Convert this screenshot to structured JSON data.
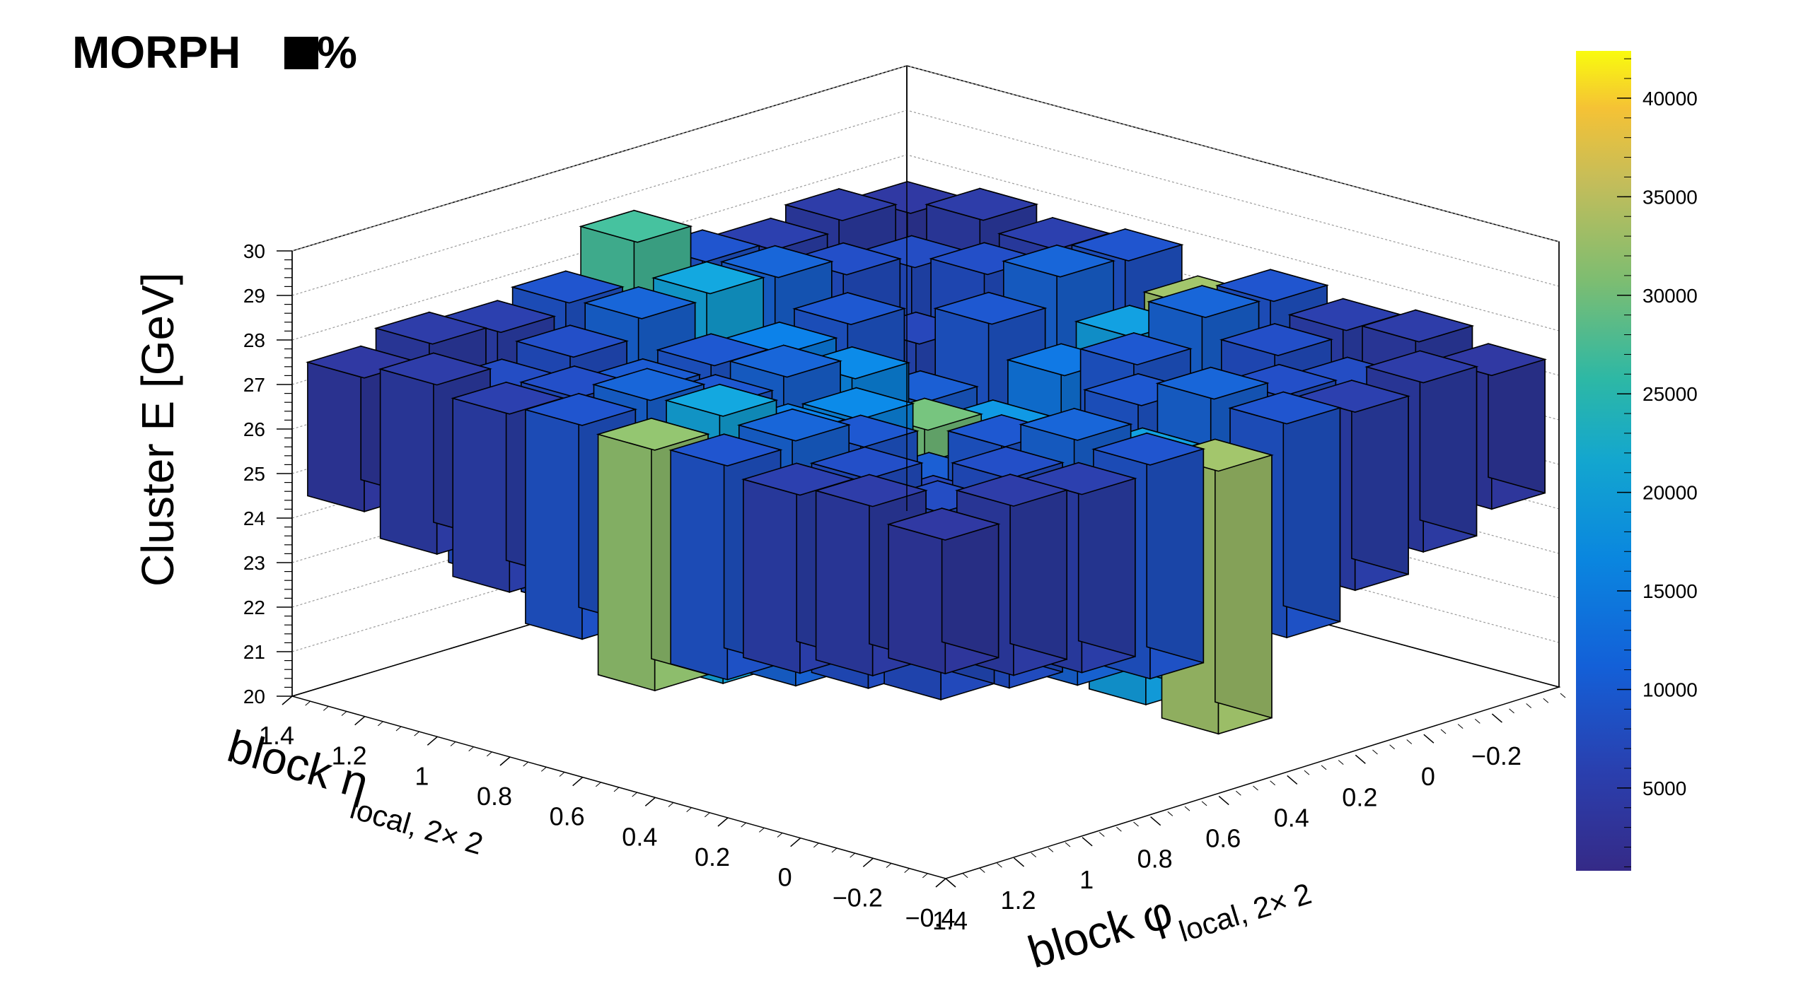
{
  "header": {
    "label": "MORPH",
    "percent_text": "%"
  },
  "colors": {
    "palette": [
      "#352a87",
      "#1f4fc4",
      "#0a7ee0",
      "#13a3d4",
      "#2db8a5",
      "#7dbd71",
      "#c4bd5a",
      "#f7c93a",
      "#f9fb0e"
    ],
    "bar_outline": "#000000",
    "grid": "#9a9a9a",
    "frame": "#000000"
  },
  "chart_data": {
    "type": "lego3d",
    "title": "",
    "xlabel": "block φ",
    "xlabel_sub": "local, 2× 2",
    "ylabel": "block η",
    "ylabel_sub": "local, 2× 2",
    "zlabel": "Cluster E  [GeV]",
    "x_ticks": [
      "−0.2",
      "0",
      "0.2",
      "0.4",
      "0.6",
      "0.8",
      "1",
      "1.2",
      "1.4"
    ],
    "y_ticks": [
      "1.4",
      "1.2",
      "1",
      "0.8",
      "0.6",
      "0.4",
      "0.2",
      "0",
      "−0.2",
      "−0.4"
    ],
    "z_ticks": [
      "20",
      "21",
      "22",
      "23",
      "24",
      "25",
      "26",
      "27",
      "28",
      "29",
      "30"
    ],
    "zlim": [
      20,
      30
    ],
    "color_scale": {
      "ticks": [
        "5000",
        "10000",
        "15000",
        "20000",
        "25000",
        "30000",
        "35000",
        "40000"
      ],
      "range": [
        800,
        42400
      ]
    },
    "phi_bins": [
      -0.3,
      -0.1,
      0.1,
      0.3,
      0.5,
      0.7,
      0.9,
      1.1,
      1.3
    ],
    "eta_bins": [
      1.3,
      1.1,
      0.9,
      0.7,
      0.5,
      0.3,
      0.1,
      -0.1,
      -0.3
    ],
    "bars": [
      {
        "phi": 0.5,
        "eta": 0.5,
        "zlo": 21.7,
        "zhi": 26.3,
        "count": 26000
      },
      {
        "phi": 0.5,
        "eta": 0.3,
        "zlo": 22.1,
        "zhi": 25.8,
        "count": 14000
      },
      {
        "phi": 0.3,
        "eta": 0.5,
        "zlo": 22.1,
        "zhi": 25.8,
        "count": 14000
      },
      {
        "phi": 0.5,
        "eta": 0.7,
        "zlo": 22.0,
        "zhi": 27.0,
        "count": 12000
      },
      {
        "phi": 0.7,
        "eta": 0.5,
        "zlo": 22.0,
        "zhi": 27.0,
        "count": 12000
      },
      {
        "phi": 0.1,
        "eta": 0.1,
        "zlo": 21.6,
        "zhi": 25.3,
        "count": 8500
      },
      {
        "phi": 0.3,
        "eta": 0.3,
        "zlo": 21.8,
        "zhi": 25.9,
        "count": 9000
      },
      {
        "phi": 0.7,
        "eta": 0.7,
        "zlo": 21.9,
        "zhi": 27.5,
        "count": 8000
      },
      {
        "phi": 0.9,
        "eta": 0.9,
        "zlo": 22.2,
        "zhi": 27.2,
        "count": 7000
      },
      {
        "phi": 1.3,
        "eta": 0.5,
        "zlo": 22.3,
        "zhi": 27.7,
        "count": 28000
      },
      {
        "phi": 0.5,
        "eta": 1.3,
        "zlo": 22.3,
        "zhi": 28.7,
        "count": 23000
      },
      {
        "phi": 0.5,
        "eta": -0.3,
        "zlo": 21.3,
        "zhi": 27.2,
        "count": 29000
      },
      {
        "phi": -0.3,
        "eta": 0.5,
        "zlo": 21.3,
        "zhi": 27.2,
        "count": 29000
      },
      {
        "phi": 1.1,
        "eta": 0.5,
        "zlo": 22.0,
        "zhi": 28.0,
        "count": 16000
      },
      {
        "phi": 0.5,
        "eta": 1.1,
        "zlo": 22.0,
        "zhi": 28.0,
        "count": 16000
      },
      {
        "phi": -0.1,
        "eta": 0.5,
        "zlo": 21.5,
        "zhi": 27.0,
        "count": 15000
      },
      {
        "phi": 0.5,
        "eta": -0.1,
        "zlo": 21.5,
        "zhi": 27.0,
        "count": 15000
      },
      {
        "phi": 0.9,
        "eta": 0.5,
        "zlo": 21.8,
        "zhi": 27.1,
        "count": 11000
      },
      {
        "phi": 0.5,
        "eta": 0.9,
        "zlo": 21.8,
        "zhi": 27.1,
        "count": 11000
      },
      {
        "phi": 0.1,
        "eta": 0.5,
        "zlo": 21.6,
        "zhi": 26.6,
        "count": 10000
      },
      {
        "phi": 0.5,
        "eta": 0.1,
        "zlo": 21.6,
        "zhi": 26.6,
        "count": 10000
      },
      {
        "phi": 1.3,
        "eta": 1.3,
        "zlo": 24.5,
        "zhi": 27.5,
        "count": 2500
      },
      {
        "phi": 1.3,
        "eta": -0.3,
        "zlo": 24.5,
        "zhi": 27.5,
        "count": 2500
      },
      {
        "phi": -0.3,
        "eta": 1.3,
        "zlo": 24.5,
        "zhi": 27.5,
        "count": 2500
      },
      {
        "phi": -0.3,
        "eta": -0.3,
        "zlo": 24.5,
        "zhi": 27.5,
        "count": 2500
      },
      {
        "phi": 1.1,
        "eta": 1.1,
        "zlo": 23.0,
        "zhi": 27.2,
        "count": 5200
      },
      {
        "phi": 1.1,
        "eta": -0.1,
        "zlo": 23.0,
        "zhi": 27.2,
        "count": 5200
      },
      {
        "phi": -0.1,
        "eta": 1.1,
        "zlo": 23.0,
        "zhi": 27.2,
        "count": 5200
      },
      {
        "phi": -0.1,
        "eta": -0.1,
        "zlo": 23.0,
        "zhi": 27.2,
        "count": 5200
      },
      {
        "phi": 1.3,
        "eta": 0.9,
        "zlo": 23.6,
        "zhi": 27.6,
        "count": 3500
      },
      {
        "phi": 1.3,
        "eta": 0.1,
        "zlo": 23.6,
        "zhi": 27.6,
        "count": 3500
      },
      {
        "phi": -0.3,
        "eta": 0.9,
        "zlo": 23.6,
        "zhi": 27.6,
        "count": 3500
      },
      {
        "phi": -0.3,
        "eta": 0.1,
        "zlo": 23.6,
        "zhi": 27.6,
        "count": 3500
      },
      {
        "phi": 0.9,
        "eta": 1.3,
        "zlo": 23.6,
        "zhi": 27.6,
        "count": 3500
      },
      {
        "phi": 0.1,
        "eta": 1.3,
        "zlo": 23.6,
        "zhi": 27.6,
        "count": 3500
      },
      {
        "phi": 0.9,
        "eta": -0.3,
        "zlo": 23.6,
        "zhi": 27.6,
        "count": 3500
      },
      {
        "phi": 0.1,
        "eta": -0.3,
        "zlo": 23.6,
        "zhi": 27.6,
        "count": 3500
      },
      {
        "phi": 1.3,
        "eta": 0.7,
        "zlo": 23.0,
        "zhi": 27.8,
        "count": 6200
      },
      {
        "phi": 1.3,
        "eta": 0.3,
        "zlo": 23.0,
        "zhi": 27.8,
        "count": 6200
      },
      {
        "phi": -0.3,
        "eta": 0.7,
        "zlo": 23.0,
        "zhi": 27.8,
        "count": 6200
      },
      {
        "phi": -0.3,
        "eta": 0.3,
        "zlo": 23.0,
        "zhi": 27.8,
        "count": 6200
      },
      {
        "phi": 0.7,
        "eta": 1.3,
        "zlo": 23.0,
        "zhi": 27.8,
        "count": 6200
      },
      {
        "phi": 0.3,
        "eta": 1.3,
        "zlo": 23.0,
        "zhi": 27.8,
        "count": 6200
      },
      {
        "phi": 0.7,
        "eta": -0.3,
        "zlo": 23.0,
        "zhi": 27.8,
        "count": 6200
      },
      {
        "phi": 0.3,
        "eta": -0.3,
        "zlo": 23.0,
        "zhi": 27.8,
        "count": 6200
      },
      {
        "phi": 1.3,
        "eta": 1.1,
        "zlo": 24.0,
        "zhi": 27.8,
        "count": 3000
      },
      {
        "phi": 1.3,
        "eta": -0.1,
        "zlo": 24.0,
        "zhi": 27.8,
        "count": 3000
      },
      {
        "phi": -0.3,
        "eta": 1.1,
        "zlo": 24.0,
        "zhi": 27.8,
        "count": 3000
      },
      {
        "phi": -0.3,
        "eta": -0.1,
        "zlo": 24.0,
        "zhi": 27.8,
        "count": 3000
      },
      {
        "phi": 1.1,
        "eta": 1.3,
        "zlo": 24.0,
        "zhi": 27.8,
        "count": 3000
      },
      {
        "phi": -0.1,
        "eta": 1.3,
        "zlo": 24.0,
        "zhi": 27.8,
        "count": 3000
      },
      {
        "phi": 1.1,
        "eta": -0.3,
        "zlo": 24.0,
        "zhi": 27.8,
        "count": 3000
      },
      {
        "phi": -0.1,
        "eta": -0.3,
        "zlo": 24.0,
        "zhi": 27.8,
        "count": 3000
      },
      {
        "phi": 1.1,
        "eta": 0.9,
        "zlo": 22.8,
        "zhi": 27.5,
        "count": 5500
      },
      {
        "phi": 1.1,
        "eta": 0.1,
        "zlo": 22.8,
        "zhi": 27.5,
        "count": 5500
      },
      {
        "phi": -0.1,
        "eta": 0.9,
        "zlo": 22.8,
        "zhi": 27.5,
        "count": 5500
      },
      {
        "phi": -0.1,
        "eta": 0.1,
        "zlo": 22.8,
        "zhi": 27.5,
        "count": 5500
      },
      {
        "phi": 0.9,
        "eta": 1.1,
        "zlo": 22.8,
        "zhi": 27.5,
        "count": 5500
      },
      {
        "phi": 0.1,
        "eta": 1.1,
        "zlo": 22.8,
        "zhi": 27.5,
        "count": 5500
      },
      {
        "phi": 0.9,
        "eta": -0.1,
        "zlo": 22.8,
        "zhi": 27.5,
        "count": 5500
      },
      {
        "phi": 0.1,
        "eta": -0.1,
        "zlo": 22.8,
        "zhi": 27.5,
        "count": 5500
      },
      {
        "phi": 1.1,
        "eta": 0.7,
        "zlo": 22.4,
        "zhi": 27.9,
        "count": 8000
      },
      {
        "phi": 1.1,
        "eta": 0.3,
        "zlo": 22.4,
        "zhi": 27.9,
        "count": 8000
      },
      {
        "phi": -0.1,
        "eta": 0.7,
        "zlo": 22.4,
        "zhi": 27.9,
        "count": 8000
      },
      {
        "phi": -0.1,
        "eta": 0.3,
        "zlo": 22.4,
        "zhi": 27.9,
        "count": 8000
      },
      {
        "phi": 0.7,
        "eta": 1.1,
        "zlo": 22.4,
        "zhi": 27.9,
        "count": 8000
      },
      {
        "phi": 0.3,
        "eta": 1.1,
        "zlo": 22.4,
        "zhi": 27.9,
        "count": 8000
      },
      {
        "phi": 0.7,
        "eta": -0.1,
        "zlo": 22.4,
        "zhi": 27.9,
        "count": 8000
      },
      {
        "phi": 0.3,
        "eta": -0.1,
        "zlo": 22.4,
        "zhi": 27.9,
        "count": 8000
      },
      {
        "phi": 0.9,
        "eta": 0.7,
        "zlo": 22.3,
        "zhi": 27.3,
        "count": 6500
      },
      {
        "phi": 0.9,
        "eta": 0.3,
        "zlo": 22.3,
        "zhi": 27.3,
        "count": 6500
      },
      {
        "phi": 0.1,
        "eta": 0.7,
        "zlo": 22.3,
        "zhi": 27.3,
        "count": 6500
      },
      {
        "phi": 0.1,
        "eta": 0.3,
        "zlo": 22.3,
        "zhi": 27.3,
        "count": 6500
      },
      {
        "phi": 0.7,
        "eta": 0.9,
        "zlo": 22.3,
        "zhi": 27.3,
        "count": 6500
      },
      {
        "phi": 0.3,
        "eta": 0.9,
        "zlo": 22.3,
        "zhi": 27.3,
        "count": 6500
      },
      {
        "phi": 0.7,
        "eta": 0.1,
        "zlo": 22.3,
        "zhi": 27.3,
        "count": 6500
      },
      {
        "phi": 0.3,
        "eta": 0.1,
        "zlo": 22.3,
        "zhi": 27.3,
        "count": 6500
      },
      {
        "phi": 0.9,
        "eta": 0.1,
        "zlo": 22.6,
        "zhi": 26.4,
        "count": 4500
      },
      {
        "phi": 0.1,
        "eta": 0.9,
        "zlo": 22.6,
        "zhi": 26.4,
        "count": 4500
      },
      {
        "phi": 0.7,
        "eta": 0.3,
        "zlo": 22.2,
        "zhi": 26.0,
        "count": 7200
      },
      {
        "phi": 0.3,
        "eta": 0.7,
        "zlo": 22.2,
        "zhi": 26.0,
        "count": 7200
      }
    ]
  }
}
